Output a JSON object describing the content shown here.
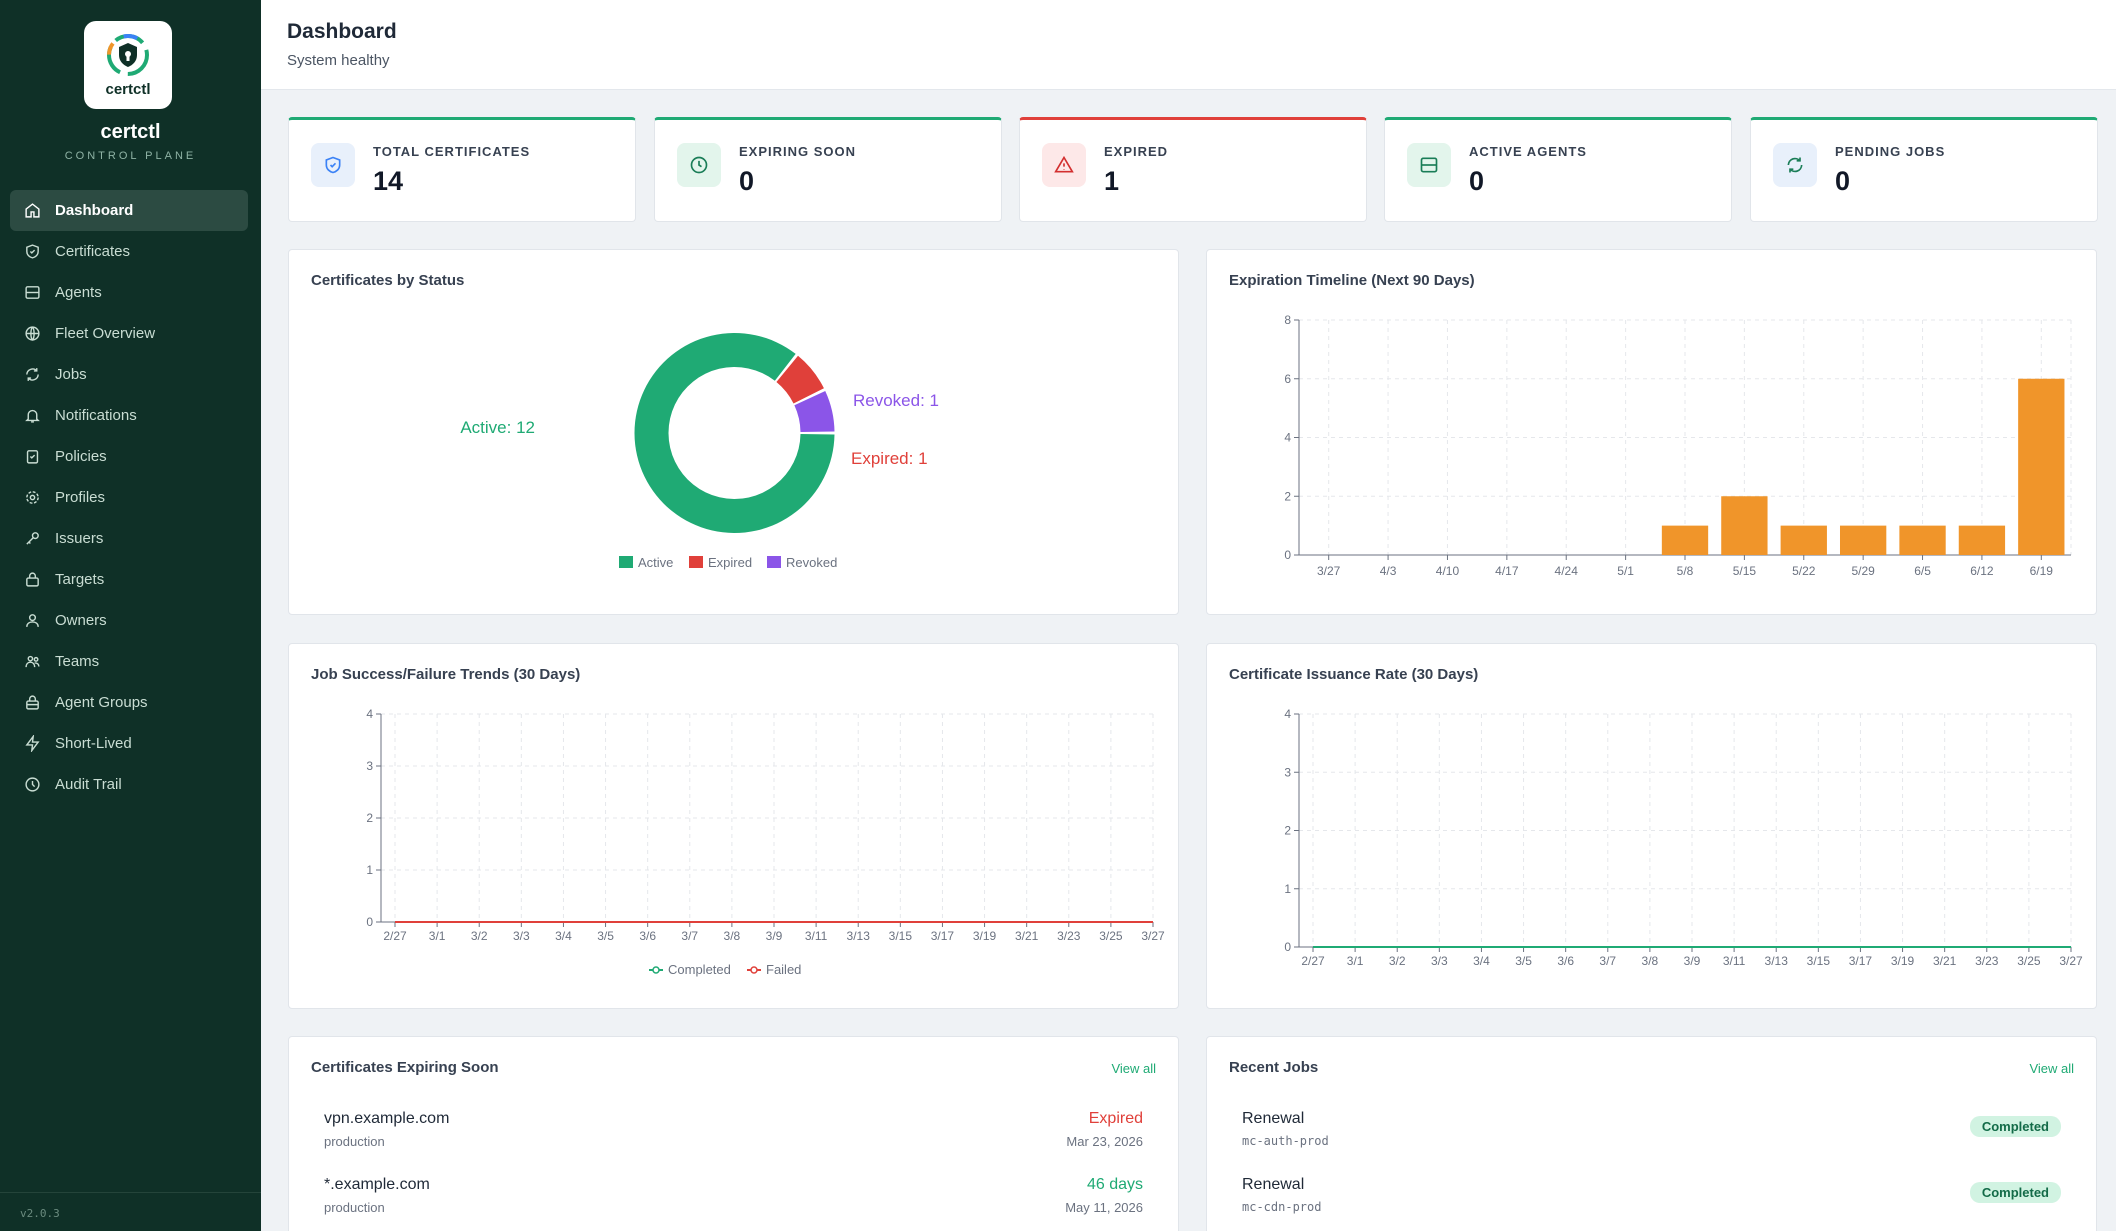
{
  "app": {
    "name": "certctl",
    "tagline": "CONTROL PLANE",
    "logo_text": "certctl",
    "version": "v2.0.3"
  },
  "nav": [
    {
      "label": "Dashboard",
      "icon": "home-icon",
      "active": true
    },
    {
      "label": "Certificates",
      "icon": "shield-icon"
    },
    {
      "label": "Agents",
      "icon": "server-icon"
    },
    {
      "label": "Fleet Overview",
      "icon": "globe-icon"
    },
    {
      "label": "Jobs",
      "icon": "refresh-icon"
    },
    {
      "label": "Notifications",
      "icon": "bell-icon"
    },
    {
      "label": "Policies",
      "icon": "clipboard-check-icon"
    },
    {
      "label": "Profiles",
      "icon": "gear-icon"
    },
    {
      "label": "Issuers",
      "icon": "key-icon"
    },
    {
      "label": "Targets",
      "icon": "lock-icon"
    },
    {
      "label": "Owners",
      "icon": "user-icon"
    },
    {
      "label": "Teams",
      "icon": "users-icon"
    },
    {
      "label": "Agent Groups",
      "icon": "lock-group-icon"
    },
    {
      "label": "Short-Lived",
      "icon": "bolt-icon"
    },
    {
      "label": "Audit Trail",
      "icon": "clock-icon"
    }
  ],
  "header": {
    "title": "Dashboard",
    "subtitle": "System healthy"
  },
  "stats": [
    {
      "label": "TOTAL CERTIFICATES",
      "value": "14",
      "icon": "shield-icon",
      "accent": "#1faa74"
    },
    {
      "label": "EXPIRING SOON",
      "value": "0",
      "icon": "clock-icon",
      "accent": "#1faa74"
    },
    {
      "label": "EXPIRED",
      "value": "1",
      "icon": "warning-icon",
      "accent": "#e0403a"
    },
    {
      "label": "ACTIVE AGENTS",
      "value": "0",
      "icon": "server-icon",
      "accent": "#1faa74"
    },
    {
      "label": "PENDING JOBS",
      "value": "0",
      "icon": "refresh-icon",
      "accent": "#1faa74"
    }
  ],
  "panels": {
    "status": "Certificates by Status",
    "timeline": "Expiration Timeline (Next 90 Days)",
    "jobs": "Job Success/Failure Trends (30 Days)",
    "issuance": "Certificate Issuance Rate (30 Days)",
    "expiring": "Certificates Expiring Soon",
    "recent_jobs": "Recent Jobs",
    "view_all": "View all"
  },
  "chart_data": [
    {
      "type": "pie",
      "title": "Certificates by Status",
      "categories": [
        "Active",
        "Expired",
        "Revoked"
      ],
      "values": [
        12,
        1,
        1
      ],
      "colors": [
        "#1faa74",
        "#e0403a",
        "#8b55e8"
      ],
      "slice_labels": [
        "Active: 12",
        "Expired: 1",
        "Revoked: 1"
      ],
      "legend": "bottom"
    },
    {
      "type": "bar",
      "title": "Expiration Timeline (Next 90 Days)",
      "categories": [
        "3/27",
        "4/3",
        "4/10",
        "4/17",
        "4/24",
        "5/1",
        "5/8",
        "5/15",
        "5/22",
        "5/29",
        "6/5",
        "6/12",
        "6/19"
      ],
      "values": [
        0,
        0,
        0,
        0,
        0,
        0,
        1,
        2,
        1,
        1,
        1,
        1,
        6
      ],
      "ylim": [
        0,
        8
      ],
      "yticks": [
        0,
        2,
        4,
        6,
        8
      ],
      "color": "#f0952a",
      "grid": true
    },
    {
      "type": "line",
      "title": "Job Success/Failure Trends (30 Days)",
      "x": [
        "2/27",
        "3/1",
        "3/2",
        "3/3",
        "3/4",
        "3/5",
        "3/6",
        "3/7",
        "3/8",
        "3/9",
        "3/11",
        "3/13",
        "3/15",
        "3/17",
        "3/19",
        "3/21",
        "3/23",
        "3/25",
        "3/27"
      ],
      "series": [
        {
          "name": "Completed",
          "values": [
            0,
            0,
            0,
            0,
            0,
            0,
            0,
            0,
            0,
            0,
            0,
            0,
            0,
            0,
            0,
            0,
            0,
            0,
            0
          ],
          "color": "#1faa74"
        },
        {
          "name": "Failed",
          "values": [
            0,
            0,
            0,
            0,
            0,
            0,
            0,
            0,
            0,
            0,
            0,
            0,
            0,
            0,
            0,
            0,
            0,
            0,
            0
          ],
          "color": "#e0403a"
        }
      ],
      "ylim": [
        0,
        4
      ],
      "yticks": [
        0,
        1,
        2,
        3,
        4
      ],
      "legend": "bottom",
      "grid": true
    },
    {
      "type": "line",
      "title": "Certificate Issuance Rate (30 Days)",
      "x": [
        "2/27",
        "3/1",
        "3/2",
        "3/3",
        "3/4",
        "3/5",
        "3/6",
        "3/7",
        "3/8",
        "3/9",
        "3/11",
        "3/13",
        "3/15",
        "3/17",
        "3/19",
        "3/21",
        "3/23",
        "3/25",
        "3/27"
      ],
      "series": [
        {
          "values": [
            0,
            0,
            0,
            0,
            0,
            0,
            0,
            0,
            0,
            0,
            0,
            0,
            0,
            0,
            0,
            0,
            0,
            0,
            0
          ],
          "color": "#1faa74"
        }
      ],
      "ylim": [
        0,
        4
      ],
      "yticks": [
        0,
        1,
        2,
        3,
        4
      ],
      "grid": true
    }
  ],
  "expiring": [
    {
      "name": "vpn.example.com",
      "env": "production",
      "status": "Expired",
      "status_color": "#e0403a",
      "date": "Mar 23, 2026"
    },
    {
      "name": "*.example.com",
      "env": "production",
      "status": "46 days",
      "status_color": "#1faa74",
      "date": "May 11, 2026"
    }
  ],
  "recent_jobs": [
    {
      "type": "Renewal",
      "cert": "mc-auth-prod",
      "status": "Completed"
    },
    {
      "type": "Renewal",
      "cert": "mc-cdn-prod",
      "status": "Completed"
    }
  ]
}
